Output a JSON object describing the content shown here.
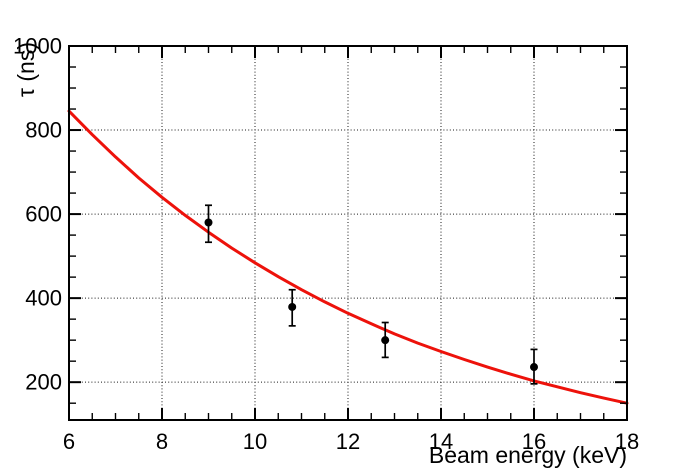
{
  "chart_data": {
    "type": "scatter",
    "title": "",
    "xlabel": "Beam energy (keV)",
    "ylabel": "τ (ns)",
    "xlim": [
      6,
      18
    ],
    "ylim": [
      110,
      1000
    ],
    "grid": "dotted",
    "legend": "none",
    "x_major_ticks": [
      6,
      8,
      10,
      12,
      14,
      16,
      18
    ],
    "x_tick_labels": [
      "6",
      "8",
      "10",
      "12",
      "14",
      "16",
      "18"
    ],
    "x_minor_step": 0.5,
    "y_major_ticks": [
      200,
      400,
      600,
      800,
      1000
    ],
    "y_tick_labels": [
      "200",
      "400",
      "600",
      "800",
      "1000"
    ],
    "y_minor_step": 50,
    "colors": {
      "curve": "#ed120b",
      "points": "#000000",
      "axis": "#000000",
      "background": "#ffffff"
    },
    "series": [
      {
        "name": "fit-curve",
        "type": "line",
        "x": [
          6,
          6.5,
          7,
          7.5,
          8,
          8.5,
          9,
          9.5,
          10,
          10.5,
          11,
          11.5,
          12,
          12.5,
          13,
          13.5,
          14,
          14.5,
          15,
          15.5,
          16,
          16.5,
          17,
          17.5,
          18
        ],
        "y": [
          845,
          789,
          736,
          686,
          640,
          597,
          557,
          519,
          484,
          451,
          420,
          391,
          364,
          339,
          315,
          293,
          273,
          254,
          236,
          219,
          203,
          189,
          175,
          162,
          150
        ]
      },
      {
        "name": "measured-points",
        "type": "scatter-errorbar",
        "points": [
          {
            "x": 9.0,
            "y": 580,
            "y_low": 533,
            "y_high": 621
          },
          {
            "x": 10.8,
            "y": 379,
            "y_low": 334,
            "y_high": 420
          },
          {
            "x": 12.8,
            "y": 300,
            "y_low": 259,
            "y_high": 342
          },
          {
            "x": 16.0,
            "y": 236,
            "y_low": 196,
            "y_high": 278
          }
        ]
      }
    ]
  }
}
